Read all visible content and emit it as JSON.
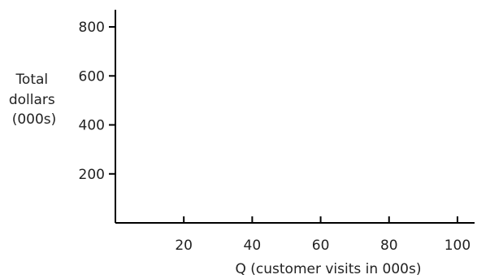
{
  "chart_data": {
    "type": "line",
    "title": "",
    "xlabel": "Q (customer visits in 000s)",
    "ylabel_lines": [
      "Total",
      "dollars",
      "(000s)"
    ],
    "x_ticks": [
      20,
      40,
      60,
      80,
      100
    ],
    "y_ticks": [
      200,
      400,
      600,
      800
    ],
    "xlim": [
      0,
      105
    ],
    "ylim": [
      0,
      870
    ],
    "grid": false,
    "series": []
  }
}
